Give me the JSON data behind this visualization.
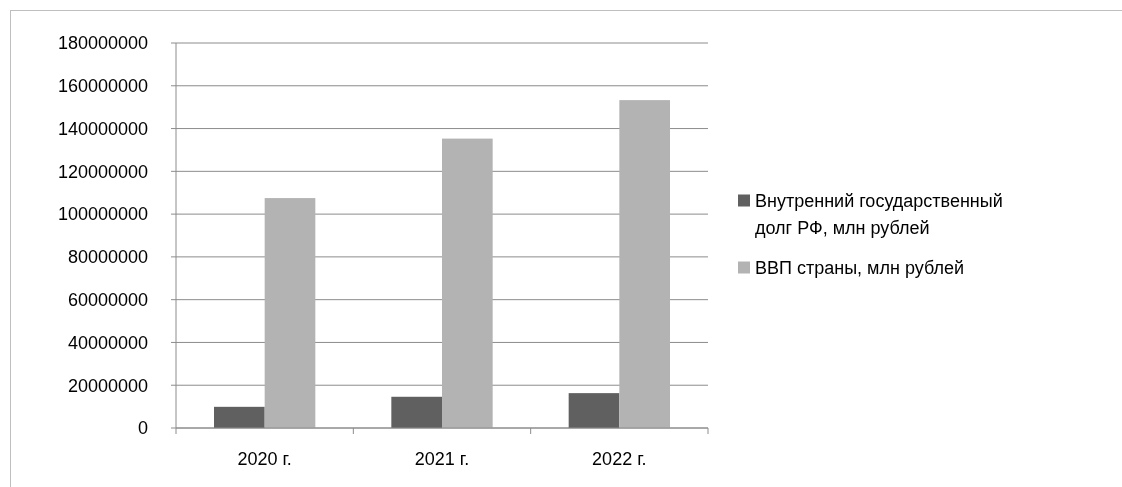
{
  "chart_data": {
    "type": "bar",
    "categories": [
      "2020 г.",
      "2021 г.",
      "2022 г."
    ],
    "series": [
      {
        "name": "Внутренний государственный долг РФ, млн рублей",
        "color": "#606060",
        "values": [
          9900000,
          14600000,
          16300000
        ]
      },
      {
        "name": "ВВП страны, млн рублей",
        "color": "#b3b3b3",
        "values": [
          107500000,
          135300000,
          153300000
        ]
      }
    ],
    "ylim": [
      0,
      180000000
    ],
    "yticks": [
      0,
      20000000,
      40000000,
      60000000,
      80000000,
      100000000,
      120000000,
      140000000,
      160000000,
      180000000
    ],
    "grid": "y",
    "legend": "right"
  }
}
